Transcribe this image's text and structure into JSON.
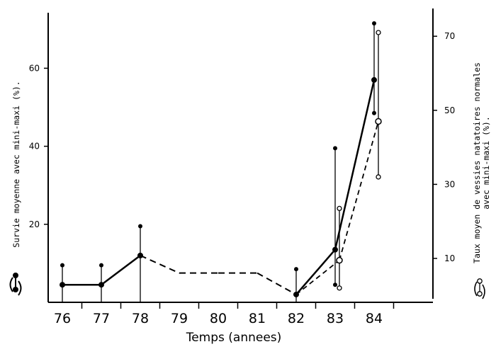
{
  "chart_data": {
    "type": "line",
    "title": "",
    "xlabel": "Temps (annees)",
    "ylabel_left": "Survie moyenne avec mini-maxi (%).",
    "ylabel_right_line1": "Taux moyen de vessies natatoires normales",
    "ylabel_right_line2": "avec mini-maxi (%).",
    "categories": [
      "76",
      "77",
      "78",
      "79",
      "80",
      "81",
      "82",
      "83",
      "84"
    ],
    "ylim_left": [
      0,
      70
    ],
    "ylim_right": [
      0,
      72
    ],
    "yticks_left": [
      20,
      40,
      60
    ],
    "yticks_right": [
      10,
      30,
      50,
      70
    ],
    "grid": false,
    "series": [
      {
        "axis": "left",
        "marker": "filled",
        "style": "solid-with-dashed-gap",
        "points": [
          {
            "x": "76",
            "y": 4.5,
            "min": 0,
            "max": 9.5
          },
          {
            "x": "77",
            "y": 4.5,
            "min": 0,
            "max": 9.5
          },
          {
            "x": "78",
            "y": 12,
            "min": 0,
            "max": 19.5
          },
          {
            "x": "79",
            "y": 7.5,
            "min": null,
            "max": null
          },
          {
            "x": "80",
            "y": 7.5,
            "min": null,
            "max": null
          },
          {
            "x": "81",
            "y": 7.5,
            "min": null,
            "max": null
          },
          {
            "x": "82",
            "y": 2,
            "min": 0,
            "max": 8.5
          },
          {
            "x": "83",
            "y": 13.5,
            "min": 4.5,
            "max": 39.5
          },
          {
            "x": "84",
            "y": 57,
            "min": 48.5,
            "max": 71.5
          }
        ]
      },
      {
        "axis": "right",
        "marker": "open",
        "style": "dashed",
        "points": [
          {
            "x": "83",
            "y": 9.5,
            "min": 2,
            "max": 23.5
          },
          {
            "x": "84",
            "y": 47,
            "min": 32,
            "max": 71
          }
        ]
      }
    ]
  }
}
